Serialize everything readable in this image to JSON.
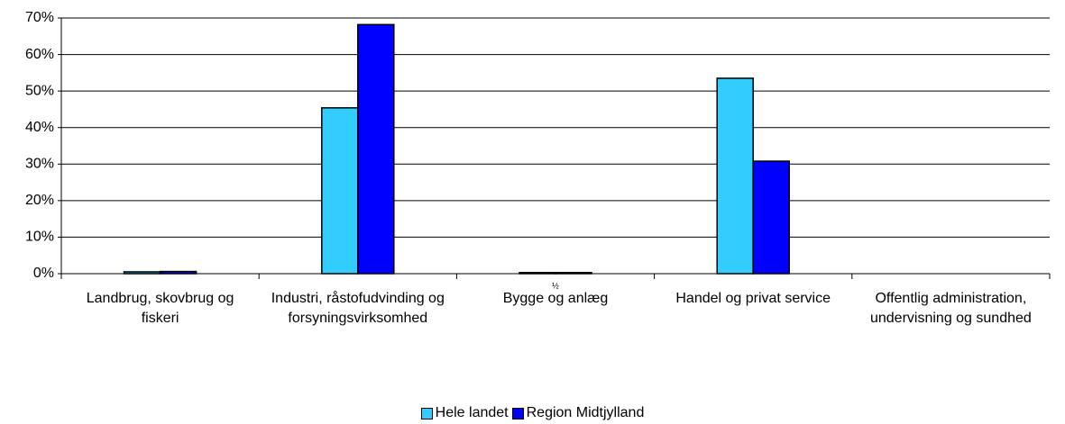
{
  "chart_data": {
    "type": "bar",
    "categories": [
      "Landbrug, skovbrug og fiskeri",
      "Industri, råstofudvinding og forsyningsvirksomhed",
      "Bygge og anlæg",
      "Handel og privat service",
      "Offentlig administration, undervisning og sundhed"
    ],
    "series": [
      {
        "name": "Hele landet",
        "color": "#33ccff",
        "values": [
          0.5,
          45.4,
          0.3,
          53.5,
          0
        ]
      },
      {
        "name": "Region Midtjylland",
        "color": "#0000ff",
        "values": [
          0.6,
          68.2,
          0.3,
          30.8,
          0
        ]
      }
    ],
    "annotation": "½",
    "ylim": [
      0,
      70
    ],
    "yticks": [
      {
        "value": 0,
        "label": "0%"
      },
      {
        "value": 10,
        "label": "10%"
      },
      {
        "value": 20,
        "label": "20%"
      },
      {
        "value": 30,
        "label": "30%"
      },
      {
        "value": 40,
        "label": "40%"
      },
      {
        "value": 50,
        "label": "50%"
      },
      {
        "value": 60,
        "label": "60%"
      },
      {
        "value": 70,
        "label": "70%"
      }
    ],
    "grid": true
  }
}
